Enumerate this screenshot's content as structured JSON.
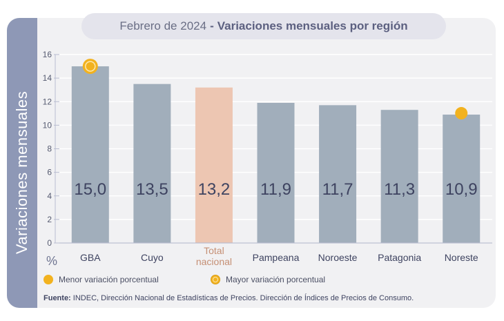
{
  "title_part1": "Febrero de 2024",
  "title_part2": "Variaciones mensuales por región",
  "side_label": "Variaciones  mensuales",
  "unit_label": "%",
  "legend": {
    "lowest": "Menor variación porcentual",
    "highest": "Mayor variación porcentual"
  },
  "source_prefix": "Fuente:",
  "source_text": "INDEC, Dirección Nacional de Estadísticas de Precios. Dirección de Índices de Precios de Consumo.",
  "colors": {
    "bar": "#a1aebb",
    "bar_national": "#edc6b2",
    "highlight": "#f2b21f",
    "value_text": "#3e4360",
    "tick_text": "#555a70"
  },
  "chart_data": {
    "type": "bar",
    "categories": [
      "GBA",
      "Cuyo",
      "Total nacional",
      "Pampeana",
      "Noroeste",
      "Patagonia",
      "Noreste"
    ],
    "values": [
      15.0,
      13.5,
      13.2,
      11.9,
      11.7,
      11.3,
      10.9
    ],
    "value_labels": [
      "15,0",
      "13,5",
      "13,2",
      "11,9",
      "11,7",
      "11,3",
      "10,9"
    ],
    "yticks": [
      0,
      2,
      4,
      6,
      8,
      10,
      12,
      14,
      16
    ],
    "ylim": [
      0,
      16
    ],
    "grid": true,
    "highest_category": "GBA",
    "lowest_category": "Noreste"
  }
}
